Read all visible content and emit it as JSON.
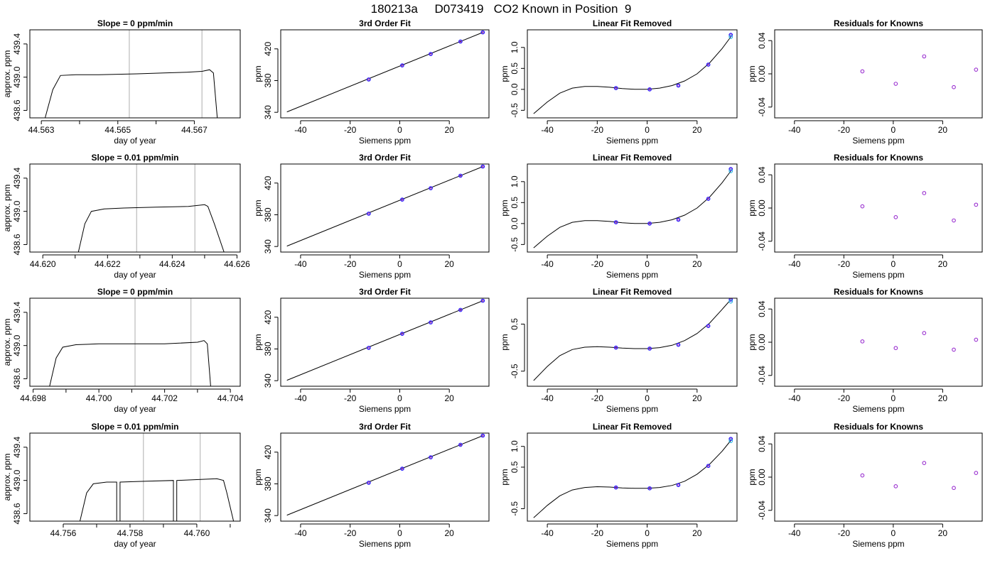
{
  "figure_title": "180213a     D073419   CO2 Known in Position  9",
  "chart_data": [
    {
      "type": "line",
      "panel": "time",
      "title": "Slope =  0  ppm/min",
      "xlabel": "day of year",
      "ylabel": "approx. ppm",
      "xlim": [
        44.5627,
        44.5682
      ],
      "ylim": [
        438.51,
        439.57
      ],
      "xticks": [
        44.563,
        44.565,
        44.567
      ],
      "xticks_minor": [
        44.564,
        44.566
      ],
      "yticks": [
        438.6,
        439.0,
        439.4
      ],
      "vlines": [
        44.5653,
        44.5672
      ],
      "series": [
        {
          "x": [
            44.5631,
            44.5633,
            44.5635,
            44.5639,
            44.5645,
            44.5655,
            44.5662,
            44.5668,
            44.5672,
            44.5674,
            44.5675,
            44.5676
          ],
          "y": [
            438.51,
            438.85,
            439.02,
            439.03,
            439.03,
            439.04,
            439.05,
            439.06,
            439.07,
            439.09,
            439.05,
            438.51
          ]
        }
      ]
    },
    {
      "type": "line",
      "panel": "fit",
      "title": "3rd Order Fit",
      "xlabel": "Siemens ppm",
      "ylabel": "ppm",
      "xlim": [
        -48,
        36
      ],
      "ylim": [
        333,
        444
      ],
      "xticks": [
        -40,
        -20,
        0,
        20
      ],
      "yticks": [
        340,
        380,
        420
      ],
      "curve": {
        "x": [
          -45.5,
          33.5
        ],
        "y": [
          340.5,
          440.8
        ]
      },
      "points": {
        "x": [
          -12.5,
          1.0,
          12.5,
          24.5,
          33.5
        ],
        "y": [
          381.4,
          399.1,
          413.5,
          429.2,
          440.8
        ]
      }
    },
    {
      "type": "line",
      "panel": "linres",
      "title": "Linear Fit Removed",
      "xlabel": "Siemens ppm",
      "ylabel": "ppm",
      "xlim": [
        -48,
        36
      ],
      "ylim": [
        -0.68,
        1.42
      ],
      "xticks": [
        -40,
        -20,
        0,
        20
      ],
      "yticks": [
        -0.5,
        0.0,
        0.5,
        1.0
      ],
      "curve": {
        "x": [
          -45.5,
          -40,
          -35,
          -30,
          -25,
          -20,
          -15,
          -10,
          -5,
          0,
          5,
          10,
          15,
          20,
          25,
          30,
          33.5
        ],
        "y": [
          -0.58,
          -0.3,
          -0.09,
          0.03,
          0.07,
          0.07,
          0.05,
          0.02,
          0.0,
          0.0,
          0.03,
          0.09,
          0.2,
          0.37,
          0.63,
          0.97,
          1.25
        ]
      },
      "points": {
        "x": [
          -12.5,
          1.0,
          12.5,
          24.5,
          33.5
        ],
        "y": [
          0.03,
          0.0,
          0.09,
          0.59,
          1.3
        ]
      },
      "points_alt": {
        "x": [
          33.5
        ],
        "y": [
          1.25
        ]
      }
    },
    {
      "type": "scatter",
      "panel": "resid",
      "title": "Residuals for Knowns",
      "xlabel": "Siemens ppm",
      "ylabel": "ppm",
      "xlim": [
        -48,
        36
      ],
      "ylim": [
        -0.053,
        0.053
      ],
      "xticks": [
        -40,
        -20,
        0,
        20
      ],
      "yticks": [
        -0.04,
        0.0,
        0.04
      ],
      "points": {
        "x": [
          -12.5,
          1.0,
          12.5,
          24.5,
          33.5
        ],
        "y": [
          0.003,
          -0.012,
          0.021,
          -0.016,
          0.005
        ]
      }
    },
    {
      "type": "line",
      "panel": "time",
      "title": "Slope =  0.01  ppm/min",
      "xlabel": "day of year",
      "ylabel": "approx. ppm",
      "xlim": [
        44.6196,
        44.6261
      ],
      "ylim": [
        438.51,
        439.57
      ],
      "xticks": [
        44.62,
        44.622,
        44.624,
        44.626
      ],
      "xticks_minor": [
        44.621,
        44.623,
        44.625
      ],
      "yticks": [
        438.6,
        439.0,
        439.4
      ],
      "vlines": [
        44.6229,
        44.6247
      ],
      "series": [
        {
          "x": [
            44.6211,
            44.6213,
            44.6215,
            44.6219,
            44.6225,
            44.6235,
            44.6245,
            44.625,
            44.6251,
            44.6253,
            44.6256
          ],
          "y": [
            438.51,
            438.85,
            439.0,
            439.03,
            439.04,
            439.05,
            439.06,
            439.08,
            439.06,
            438.85,
            438.51
          ]
        }
      ]
    },
    {
      "type": "line",
      "panel": "fit",
      "title": "3rd Order Fit",
      "xlabel": "Siemens ppm",
      "ylabel": "ppm",
      "xlim": [
        -48,
        36
      ],
      "ylim": [
        333,
        444
      ],
      "xticks": [
        -40,
        -20,
        0,
        20
      ],
      "yticks": [
        340,
        380,
        420
      ],
      "curve": {
        "x": [
          -45.5,
          33.5
        ],
        "y": [
          340.5,
          440.8
        ]
      },
      "points": {
        "x": [
          -12.5,
          1.0,
          12.5,
          24.5,
          33.5
        ],
        "y": [
          381.4,
          399.1,
          413.5,
          429.2,
          440.8
        ]
      }
    },
    {
      "type": "line",
      "panel": "linres",
      "title": "Linear Fit Removed",
      "xlabel": "Siemens ppm",
      "ylabel": "ppm",
      "xlim": [
        -48,
        36
      ],
      "ylim": [
        -0.68,
        1.42
      ],
      "xticks": [
        -40,
        -20,
        0,
        20
      ],
      "yticks": [
        -0.5,
        0.0,
        0.5,
        1.0
      ],
      "curve": {
        "x": [
          -45.5,
          -40,
          -35,
          -30,
          -25,
          -20,
          -15,
          -10,
          -5,
          0,
          5,
          10,
          15,
          20,
          25,
          30,
          33.5
        ],
        "y": [
          -0.58,
          -0.3,
          -0.09,
          0.03,
          0.07,
          0.07,
          0.05,
          0.02,
          0.0,
          0.0,
          0.03,
          0.09,
          0.2,
          0.37,
          0.63,
          0.97,
          1.25
        ]
      },
      "points": {
        "x": [
          -12.5,
          1.0,
          12.5,
          24.5,
          33.5
        ],
        "y": [
          0.03,
          0.0,
          0.09,
          0.59,
          1.3
        ]
      },
      "points_alt": {
        "x": [
          33.5
        ],
        "y": [
          1.25
        ]
      }
    },
    {
      "type": "scatter",
      "panel": "resid",
      "title": "Residuals for Knowns",
      "xlabel": "Siemens ppm",
      "ylabel": "ppm",
      "xlim": [
        -48,
        36
      ],
      "ylim": [
        -0.053,
        0.053
      ],
      "xticks": [
        -40,
        -20,
        0,
        20
      ],
      "yticks": [
        -0.04,
        0.0,
        0.04
      ],
      "points": {
        "x": [
          -12.5,
          1.0,
          12.5,
          24.5,
          33.5
        ],
        "y": [
          0.002,
          -0.011,
          0.018,
          -0.015,
          0.004
        ]
      }
    },
    {
      "type": "line",
      "panel": "time",
      "title": "Slope =  0  ppm/min",
      "xlabel": "day of year",
      "ylabel": "approx. ppm",
      "xlim": [
        44.6979,
        44.7043
      ],
      "ylim": [
        438.51,
        439.57
      ],
      "xticks": [
        44.698,
        44.7,
        44.702,
        44.704
      ],
      "xticks_minor": [
        44.699,
        44.701,
        44.703
      ],
      "yticks": [
        438.6,
        439.0,
        439.4
      ],
      "vlines": [
        44.7011,
        44.7028
      ],
      "series": [
        {
          "x": [
            44.6985,
            44.6987,
            44.6989,
            44.6993,
            44.7,
            44.701,
            44.702,
            44.703,
            44.7032,
            44.7033,
            44.7034
          ],
          "y": [
            438.51,
            438.85,
            438.98,
            439.01,
            439.02,
            439.02,
            439.02,
            439.04,
            439.06,
            439.02,
            438.51
          ]
        }
      ]
    },
    {
      "type": "line",
      "panel": "fit",
      "title": "3rd Order Fit",
      "xlabel": "Siemens ppm",
      "ylabel": "ppm",
      "xlim": [
        -48,
        36
      ],
      "ylim": [
        333,
        444
      ],
      "xticks": [
        -40,
        -20,
        0,
        20
      ],
      "yticks": [
        340,
        380,
        420
      ],
      "curve": {
        "x": [
          -45.5,
          33.5
        ],
        "y": [
          340.5,
          440.8
        ]
      },
      "points": {
        "x": [
          -12.5,
          1.0,
          12.5,
          24.5,
          33.5
        ],
        "y": [
          381.4,
          399.1,
          413.5,
          429.2,
          440.8
        ]
      }
    },
    {
      "type": "line",
      "panel": "linres",
      "title": "Linear Fit Removed",
      "xlabel": "Siemens ppm",
      "ylabel": "ppm",
      "xlim": [
        -48,
        36
      ],
      "ylim": [
        -0.82,
        1.05
      ],
      "xticks": [
        -40,
        -20,
        0,
        20
      ],
      "yticks": [
        -0.5,
        0.5
      ],
      "curve": {
        "x": [
          -45.5,
          -40,
          -35,
          -30,
          -25,
          -20,
          -15,
          -10,
          -5,
          0,
          5,
          10,
          15,
          20,
          25,
          30,
          33.5
        ],
        "y": [
          -0.7,
          -0.4,
          -0.17,
          -0.04,
          0.01,
          0.02,
          0.01,
          -0.01,
          -0.02,
          -0.02,
          0.0,
          0.05,
          0.15,
          0.3,
          0.52,
          0.81,
          1.02
        ]
      },
      "points": {
        "x": [
          -12.5,
          1.0,
          12.5,
          24.5,
          33.5
        ],
        "y": [
          0.0,
          -0.02,
          0.06,
          0.46,
          1.02
        ]
      },
      "points_alt": {
        "x": [
          33.5
        ],
        "y": [
          0.98
        ]
      }
    },
    {
      "type": "scatter",
      "panel": "resid",
      "title": "Residuals for Knowns",
      "xlabel": "Siemens ppm",
      "ylabel": "ppm",
      "xlim": [
        -48,
        36
      ],
      "ylim": [
        -0.053,
        0.053
      ],
      "xticks": [
        -40,
        -20,
        0,
        20
      ],
      "yticks": [
        -0.04,
        0.0,
        0.04
      ],
      "points": {
        "x": [
          -12.5,
          1.0,
          12.5,
          24.5,
          33.5
        ],
        "y": [
          0.001,
          -0.007,
          0.011,
          -0.009,
          0.003
        ]
      }
    },
    {
      "type": "line",
      "panel": "time",
      "title": "Slope =  0.01  ppm/min",
      "xlabel": "day of year",
      "ylabel": "approx. ppm",
      "xlim": [
        44.755,
        44.7613
      ],
      "ylim": [
        438.51,
        439.57
      ],
      "xticks": [
        44.756,
        44.758,
        44.76
      ],
      "xticks_minor": [
        44.757,
        44.759,
        44.761
      ],
      "yticks": [
        438.6,
        439.0,
        439.4
      ],
      "vlines": [
        44.7584,
        44.7601
      ],
      "series": [
        {
          "x": [
            44.7565,
            44.7567,
            44.7569,
            44.7573,
            44.7576,
            44.7576,
            44.7577,
            44.7577,
            44.7585,
            44.7593,
            44.7593,
            44.7594,
            44.7594,
            44.76,
            44.7606,
            44.7608,
            44.7609,
            44.7611
          ],
          "y": [
            438.51,
            438.85,
            438.96,
            438.98,
            438.98,
            438.51,
            438.51,
            438.98,
            438.99,
            439.0,
            438.51,
            438.51,
            439.0,
            439.01,
            439.02,
            439.0,
            438.85,
            438.51
          ]
        }
      ]
    },
    {
      "type": "line",
      "panel": "fit",
      "title": "3rd Order Fit",
      "xlabel": "Siemens ppm",
      "ylabel": "ppm",
      "xlim": [
        -48,
        36
      ],
      "ylim": [
        333,
        444
      ],
      "xticks": [
        -40,
        -20,
        0,
        20
      ],
      "yticks": [
        340,
        380,
        420
      ],
      "curve": {
        "x": [
          -45.5,
          33.5
        ],
        "y": [
          340.5,
          440.8
        ]
      },
      "points": {
        "x": [
          -12.5,
          1.0,
          12.5,
          24.5,
          33.5
        ],
        "y": [
          381.4,
          399.1,
          413.5,
          429.2,
          440.8
        ]
      }
    },
    {
      "type": "line",
      "panel": "linres",
      "title": "Linear Fit Removed",
      "xlabel": "Siemens ppm",
      "ylabel": "ppm",
      "xlim": [
        -48,
        36
      ],
      "ylim": [
        -0.8,
        1.32
      ],
      "xticks": [
        -40,
        -20,
        0,
        20
      ],
      "yticks": [
        -0.5,
        0.5,
        1.0
      ],
      "curve": {
        "x": [
          -45.5,
          -40,
          -35,
          -30,
          -25,
          -20,
          -15,
          -10,
          -5,
          0,
          5,
          10,
          15,
          20,
          25,
          30,
          33.5
        ],
        "y": [
          -0.72,
          -0.42,
          -0.19,
          -0.05,
          0.01,
          0.03,
          0.02,
          0.0,
          -0.01,
          -0.01,
          0.01,
          0.06,
          0.16,
          0.33,
          0.57,
          0.88,
          1.14
        ]
      },
      "points": {
        "x": [
          -12.5,
          1.0,
          12.5,
          24.5,
          33.5
        ],
        "y": [
          0.01,
          -0.01,
          0.07,
          0.53,
          1.18
        ]
      },
      "points_alt": {
        "x": [
          33.5
        ],
        "y": [
          1.13
        ]
      }
    },
    {
      "type": "scatter",
      "panel": "resid",
      "title": "Residuals for Knowns",
      "xlabel": "Siemens ppm",
      "ylabel": "ppm",
      "xlim": [
        -48,
        36
      ],
      "ylim": [
        -0.053,
        0.053
      ],
      "xticks": [
        -40,
        -20,
        0,
        20
      ],
      "yticks": [
        -0.04,
        0.0,
        0.04
      ],
      "points": {
        "x": [
          -12.5,
          1.0,
          12.5,
          24.5,
          33.5
        ],
        "y": [
          0.002,
          -0.011,
          0.017,
          -0.013,
          0.005
        ]
      }
    }
  ],
  "colors": {
    "axis": "#000000",
    "line": "#000000",
    "vline": "#c0c0c0",
    "point_blue": "#2020ff",
    "point_purple": "#9a30d0",
    "point_cyan": "#20b0e0",
    "marker_red": "#ff0000"
  }
}
